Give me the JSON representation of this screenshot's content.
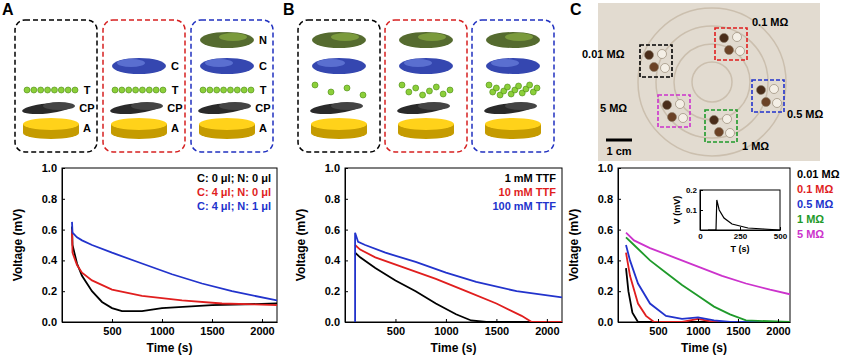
{
  "panels": [
    {
      "letter": "A",
      "layers": [
        [
          "T",
          "CP",
          "A"
        ],
        [
          "C",
          "T",
          "CP",
          "A"
        ],
        [
          "N",
          "C",
          "T",
          "CP",
          "A"
        ]
      ]
    },
    {
      "letter": "B"
    },
    {
      "letter": "C",
      "photo_labels": [
        "0.01 MΩ",
        "0.1 MΩ",
        "0.5 MΩ",
        "1 MΩ",
        "5 MΩ"
      ],
      "scale_bar": "1 cm"
    }
  ],
  "chart_data": [
    {
      "type": "line",
      "xlabel": "Time (s)",
      "ylabel": "Voltage (mV)",
      "xlim": [
        0,
        2150
      ],
      "ylim": [
        0,
        1
      ],
      "xticks": [
        500,
        1000,
        1500,
        2000
      ],
      "yticks": [
        {
          "value": 0,
          "label": "0.0"
        },
        0.2,
        0.4,
        0.6,
        0.8,
        {
          "value": 1,
          "label": "1.0"
        }
      ],
      "legend": "top-right",
      "series": [
        {
          "name": "C: 0 μl; N: 0 μl",
          "color": "#000000",
          "x": [
            100,
            105,
            150,
            200,
            300,
            400,
            500,
            600,
            800,
            1000,
            1500,
            2150
          ],
          "values": [
            0.62,
            0.5,
            0.38,
            0.3,
            0.2,
            0.13,
            0.09,
            0.07,
            0.07,
            0.09,
            0.11,
            0.12
          ]
        },
        {
          "name": "C: 4 μl; N: 0 μl",
          "color": "#e01e1e",
          "x": [
            100,
            105,
            150,
            200,
            300,
            500,
            800,
            1200,
            1600,
            2150
          ],
          "values": [
            0.6,
            0.45,
            0.37,
            0.32,
            0.27,
            0.21,
            0.17,
            0.14,
            0.12,
            0.11
          ]
        },
        {
          "name": "C: 4 μl; N: 1 μl",
          "color": "#2233cc",
          "x": [
            100,
            105,
            150,
            200,
            300,
            500,
            800,
            1100,
            1400,
            1700,
            2150
          ],
          "values": [
            0.65,
            0.58,
            0.55,
            0.53,
            0.5,
            0.45,
            0.38,
            0.31,
            0.25,
            0.2,
            0.14
          ]
        }
      ]
    },
    {
      "type": "line",
      "xlabel": "Time (s)",
      "ylabel": "Voltage (mV)",
      "xlim": [
        0,
        2150
      ],
      "ylim": [
        0,
        1
      ],
      "xticks": [
        500,
        1000,
        1500,
        2000
      ],
      "yticks": [
        {
          "value": 0,
          "label": "0.0"
        },
        0.2,
        0.4,
        0.6,
        0.8,
        {
          "value": 1,
          "label": "1.0"
        }
      ],
      "legend": "top-right",
      "series": [
        {
          "name": "1 mM TTF",
          "color": "#000000",
          "x": [
            100,
            150,
            300,
            500,
            700,
            900,
            1100,
            1250,
            1400,
            2150
          ],
          "values": [
            0.45,
            0.42,
            0.35,
            0.27,
            0.2,
            0.12,
            0.05,
            0.01,
            0,
            0
          ]
        },
        {
          "name": "10 mM TTF",
          "color": "#e01e1e",
          "x": [
            100,
            150,
            300,
            600,
            900,
            1200,
            1500,
            1750,
            1850,
            2150
          ],
          "values": [
            0.5,
            0.47,
            0.42,
            0.35,
            0.28,
            0.2,
            0.12,
            0.04,
            0,
            0
          ]
        },
        {
          "name": "100 mM TTF",
          "color": "#2233cc",
          "x": [
            100,
            100,
            130,
            200,
            400,
            700,
            1000,
            1300,
            1700,
            2150
          ],
          "values": [
            0,
            0.58,
            0.52,
            0.5,
            0.45,
            0.39,
            0.32,
            0.26,
            0.2,
            0.16
          ]
        }
      ]
    },
    {
      "type": "line",
      "xlabel": "Time (s)",
      "ylabel": "Voltage (mV)",
      "xlim": [
        0,
        2150
      ],
      "ylim": [
        0,
        1
      ],
      "xticks": [
        500,
        1000,
        1500,
        2000
      ],
      "yticks": [
        {
          "value": 0,
          "label": "0.0"
        },
        0.2,
        0.4,
        0.6,
        0.8,
        {
          "value": 1,
          "label": "1.0"
        }
      ],
      "legend": "right",
      "series": [
        {
          "name": "0.01 MΩ",
          "color": "#000000",
          "x": [
            100,
            130,
            180,
            250,
            300,
            2150
          ],
          "values": [
            0.35,
            0.2,
            0.06,
            0,
            0,
            0
          ]
        },
        {
          "name": "0.1 MΩ",
          "color": "#e01e1e",
          "x": [
            100,
            150,
            250,
            350,
            450,
            800,
            1000,
            1200,
            2150
          ],
          "values": [
            0.45,
            0.3,
            0.12,
            0.04,
            0,
            0,
            0.02,
            0,
            0
          ]
        },
        {
          "name": "0.5 MΩ",
          "color": "#2233cc",
          "x": [
            100,
            150,
            250,
            400,
            600,
            800,
            1000,
            1200,
            1400,
            2150
          ],
          "values": [
            0.5,
            0.4,
            0.25,
            0.12,
            0.04,
            0.02,
            0.03,
            0.01,
            0,
            0
          ]
        },
        {
          "name": "1 MΩ",
          "color": "#1f9a2a",
          "x": [
            100,
            200,
            400,
            600,
            800,
            1000,
            1200,
            1400,
            1600,
            2150
          ],
          "values": [
            0.55,
            0.5,
            0.4,
            0.32,
            0.24,
            0.17,
            0.1,
            0.05,
            0.01,
            0
          ]
        },
        {
          "name": "5 MΩ",
          "color": "#cc33cc",
          "x": [
            100,
            200,
            400,
            700,
            1000,
            1300,
            1600,
            1900,
            2150
          ],
          "values": [
            0.58,
            0.53,
            0.48,
            0.42,
            0.36,
            0.3,
            0.25,
            0.21,
            0.18
          ]
        }
      ]
    },
    {
      "type": "line",
      "xlabel": "T (s)",
      "ylabel": "V (mV)",
      "xlim": [
        0,
        500
      ],
      "ylim": [
        0,
        0.2
      ],
      "xticks": [
        0,
        250,
        500
      ],
      "yticks": [
        0.1,
        0.2
      ],
      "series": [
        {
          "color": "#000000",
          "x": [
            50,
            100,
            105,
            120,
            150,
            200,
            300,
            400,
            500
          ],
          "values": [
            0,
            0,
            0.15,
            0.1,
            0.06,
            0.03,
            0.01,
            0.005,
            0
          ]
        }
      ]
    }
  ]
}
